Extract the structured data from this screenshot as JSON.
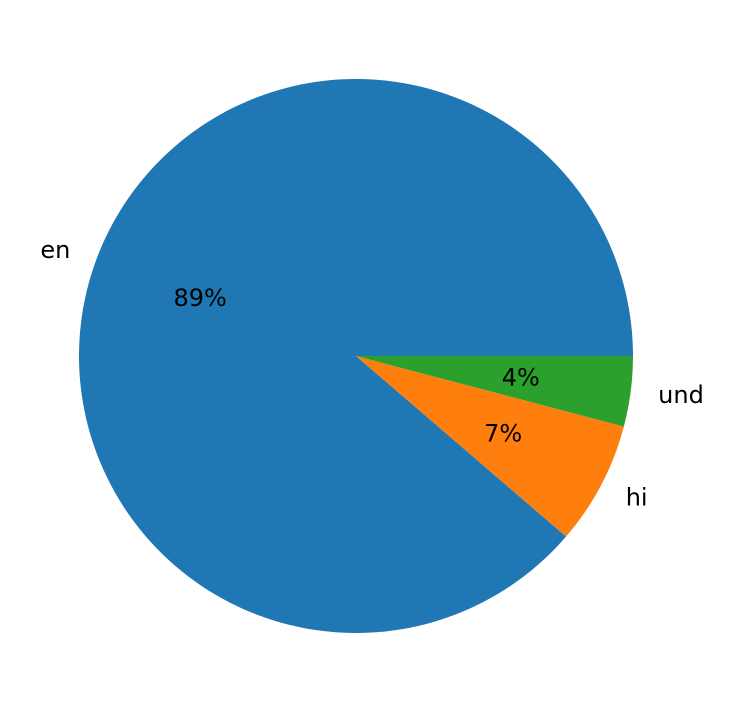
{
  "chart_data": {
    "type": "pie",
    "categories": [
      "en",
      "hi",
      "und"
    ],
    "values": [
      88.7,
      7.2,
      4.1
    ],
    "pct_labels": [
      "89%",
      "7%",
      "4%"
    ],
    "colors": [
      "#1f77b4",
      "#ff7f0e",
      "#2ca02c"
    ],
    "start_angle_deg": 0,
    "direction": "counterclockwise",
    "title": "",
    "legend": "none"
  }
}
